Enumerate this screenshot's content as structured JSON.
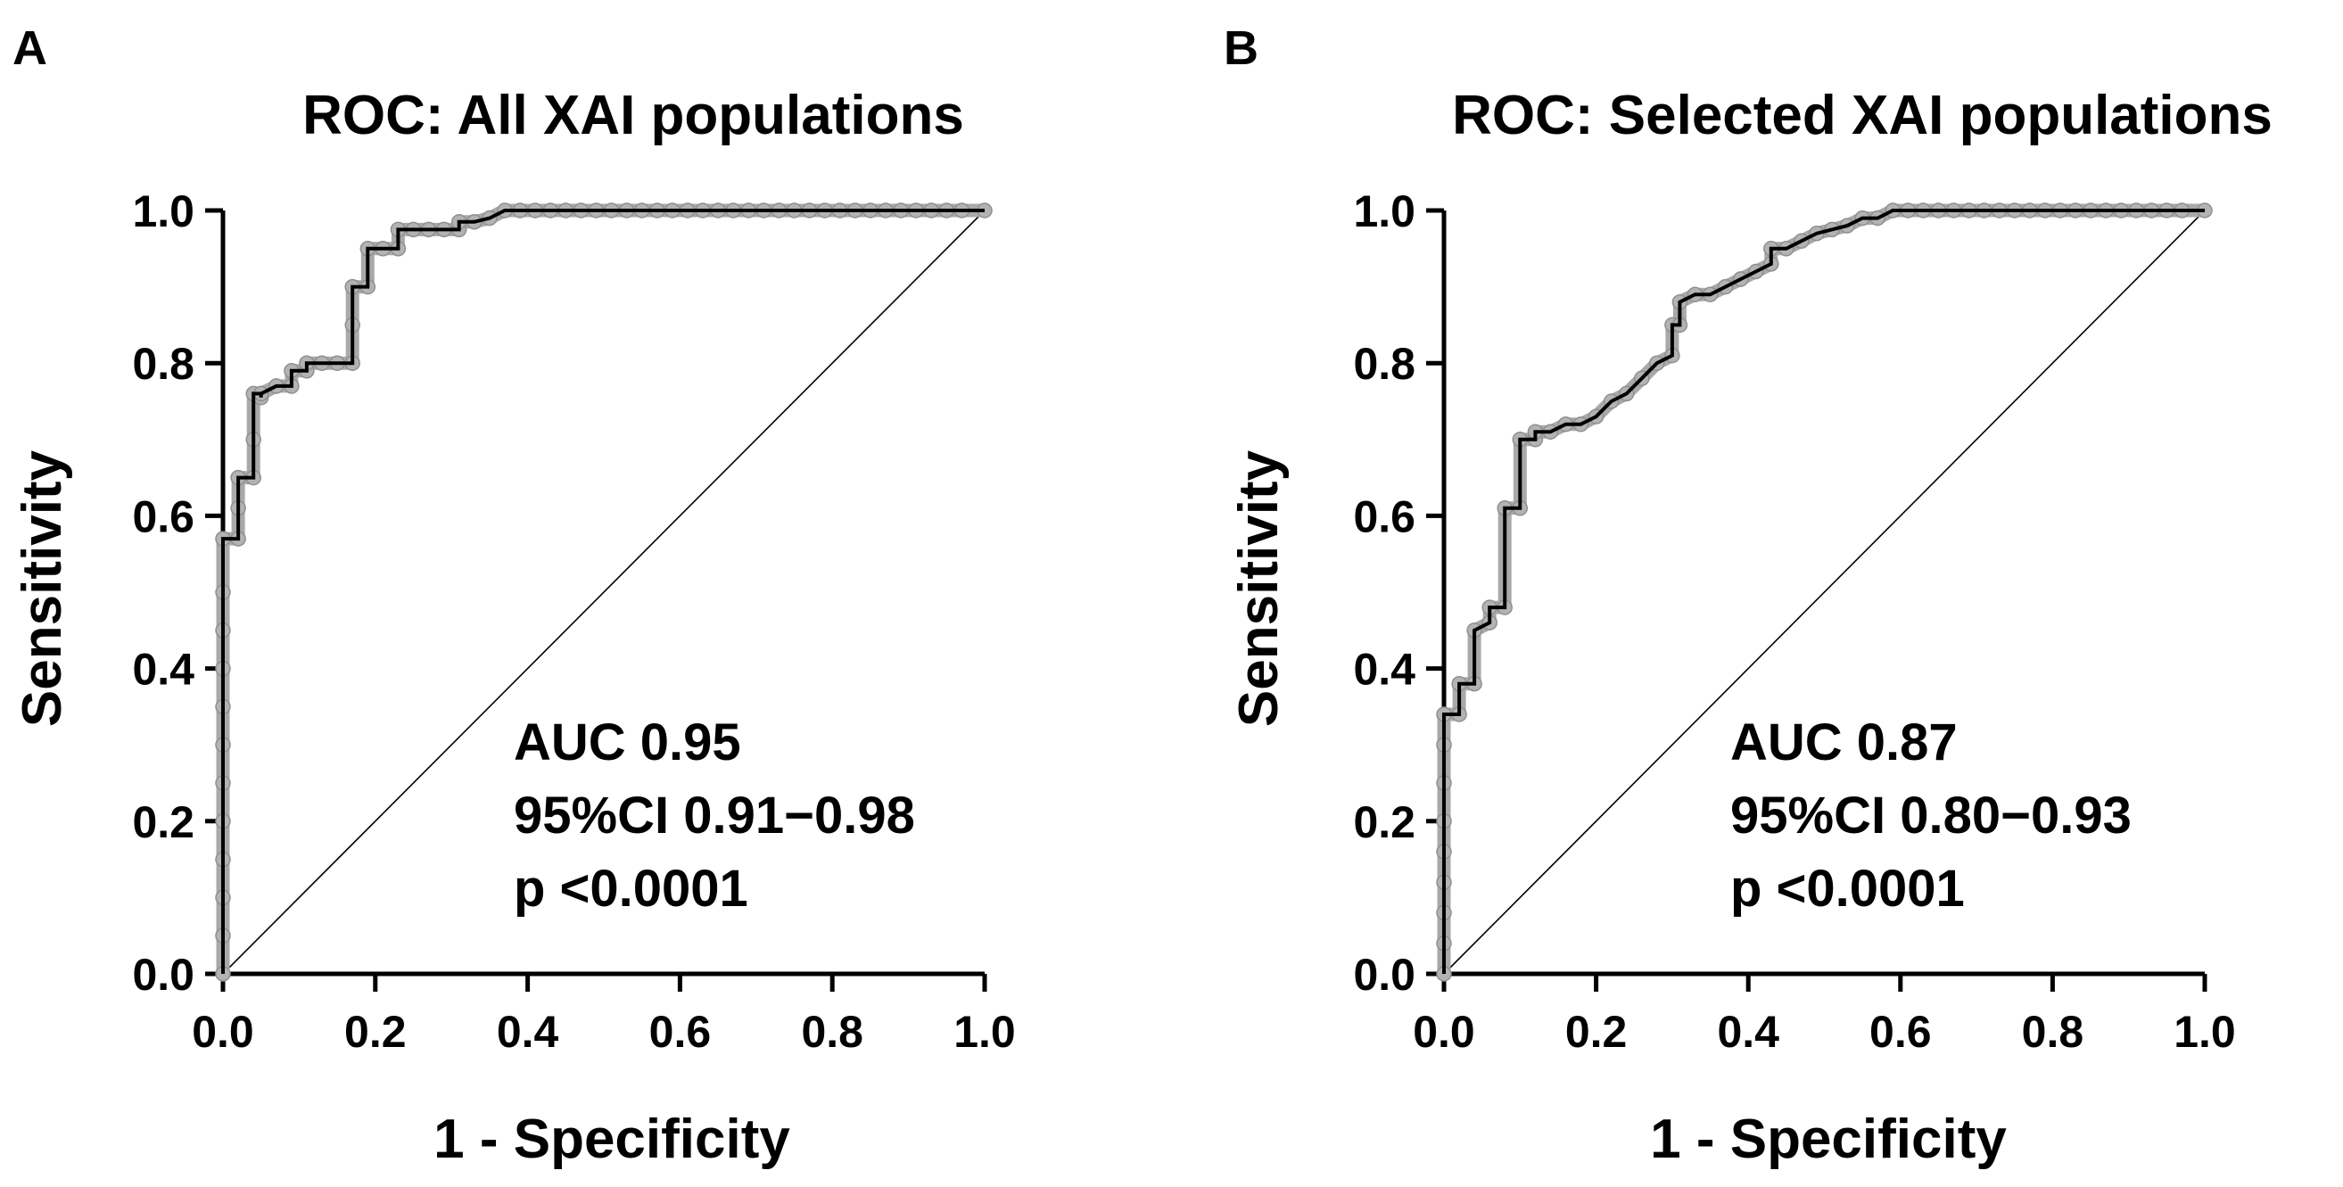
{
  "chart_data": [
    {
      "type": "line",
      "panel_label": "A",
      "title": "ROC: All XAI populations",
      "xlabel": "1 - Specificity",
      "ylabel": "Sensitivity",
      "xlim": [
        0,
        1
      ],
      "ylim": [
        0,
        1
      ],
      "xticks": [
        "0.0",
        "0.2",
        "0.4",
        "0.6",
        "0.8",
        "1.0"
      ],
      "yticks": [
        "0.0",
        "0.2",
        "0.4",
        "0.6",
        "0.8",
        "1.0"
      ],
      "reference_line": "diagonal",
      "annotation": [
        "AUC 0.95",
        "95%CI 0.91−0.98",
        "p <0.0001"
      ],
      "series": [
        {
          "name": "ROC curve",
          "x": [
            0,
            0,
            0,
            0,
            0,
            0,
            0,
            0,
            0,
            0,
            0,
            0,
            0.02,
            0.02,
            0.02,
            0.04,
            0.04,
            0.04,
            0.05,
            0.05,
            0.05,
            0.07,
            0.09,
            0.09,
            0.11,
            0.11,
            0.13,
            0.15,
            0.17,
            0.17,
            0.17,
            0.19,
            0.19,
            0.21,
            0.23,
            0.23,
            0.25,
            0.27,
            0.29,
            0.31,
            0.31,
            0.33,
            0.35,
            0.37,
            0.39,
            0.41,
            0.43,
            0.45,
            0.47,
            0.49,
            0.51,
            0.53,
            0.55,
            0.57,
            0.59,
            0.61,
            0.63,
            0.65,
            0.67,
            0.69,
            0.71,
            0.73,
            0.75,
            0.77,
            0.79,
            0.81,
            0.83,
            0.85,
            0.87,
            0.89,
            0.91,
            0.93,
            0.95,
            0.97,
            1.0
          ],
          "y": [
            0,
            0.05,
            0.1,
            0.15,
            0.2,
            0.25,
            0.3,
            0.35,
            0.4,
            0.45,
            0.5,
            0.57,
            0.57,
            0.61,
            0.65,
            0.65,
            0.7,
            0.76,
            0.76,
            0.755,
            0.76,
            0.77,
            0.77,
            0.79,
            0.79,
            0.8,
            0.8,
            0.8,
            0.8,
            0.85,
            0.9,
            0.9,
            0.95,
            0.95,
            0.95,
            0.975,
            0.975,
            0.975,
            0.975,
            0.975,
            0.985,
            0.985,
            0.99,
            1.0,
            1.0,
            1.0,
            1.0,
            1.0,
            1.0,
            1.0,
            1.0,
            1.0,
            1.0,
            1.0,
            1.0,
            1.0,
            1.0,
            1.0,
            1.0,
            1.0,
            1.0,
            1.0,
            1.0,
            1.0,
            1.0,
            1.0,
            1.0,
            1.0,
            1.0,
            1.0,
            1.0,
            1.0,
            1.0,
            1.0,
            1.0
          ]
        }
      ]
    },
    {
      "type": "line",
      "panel_label": "B",
      "title": "ROC: Selected XAI populations",
      "xlabel": "1 - Specificity",
      "ylabel": "Sensitivity",
      "xlim": [
        0,
        1
      ],
      "ylim": [
        0,
        1
      ],
      "xticks": [
        "0.0",
        "0.2",
        "0.4",
        "0.6",
        "0.8",
        "1.0"
      ],
      "yticks": [
        "0.0",
        "0.2",
        "0.4",
        "0.6",
        "0.8",
        "1.0"
      ],
      "reference_line": "diagonal",
      "annotation": [
        "AUC 0.87",
        "95%CI 0.80−0.93",
        "p <0.0001"
      ],
      "series": [
        {
          "name": "ROC curve",
          "x": [
            0,
            0,
            0,
            0,
            0,
            0,
            0,
            0,
            0,
            0.02,
            0.02,
            0.04,
            0.04,
            0.06,
            0.06,
            0.08,
            0.08,
            0.1,
            0.1,
            0.12,
            0.12,
            0.14,
            0.16,
            0.18,
            0.2,
            0.22,
            0.24,
            0.26,
            0.28,
            0.3,
            0.3,
            0.31,
            0.31,
            0.33,
            0.35,
            0.37,
            0.39,
            0.39,
            0.41,
            0.43,
            0.43,
            0.45,
            0.47,
            0.49,
            0.51,
            0.53,
            0.55,
            0.57,
            0.59,
            0.61,
            0.63,
            0.65,
            0.67,
            0.69,
            0.71,
            0.73,
            0.75,
            0.77,
            0.79,
            0.81,
            0.83,
            0.85,
            0.87,
            0.89,
            0.91,
            0.93,
            0.95,
            0.97,
            1.0
          ],
          "y": [
            0,
            0.04,
            0.08,
            0.12,
            0.16,
            0.2,
            0.25,
            0.3,
            0.34,
            0.34,
            0.38,
            0.38,
            0.45,
            0.46,
            0.48,
            0.48,
            0.61,
            0.61,
            0.7,
            0.7,
            0.71,
            0.71,
            0.72,
            0.72,
            0.73,
            0.75,
            0.76,
            0.78,
            0.8,
            0.81,
            0.85,
            0.85,
            0.88,
            0.89,
            0.89,
            0.9,
            0.91,
            0.91,
            0.92,
            0.93,
            0.95,
            0.95,
            0.96,
            0.97,
            0.975,
            0.98,
            0.99,
            0.99,
            1.0,
            1.0,
            1.0,
            1.0,
            1.0,
            1.0,
            1.0,
            1.0,
            1.0,
            1.0,
            1.0,
            1.0,
            1.0,
            1.0,
            1.0,
            1.0,
            1.0,
            1.0,
            1.0,
            1.0,
            1.0
          ]
        }
      ]
    }
  ]
}
